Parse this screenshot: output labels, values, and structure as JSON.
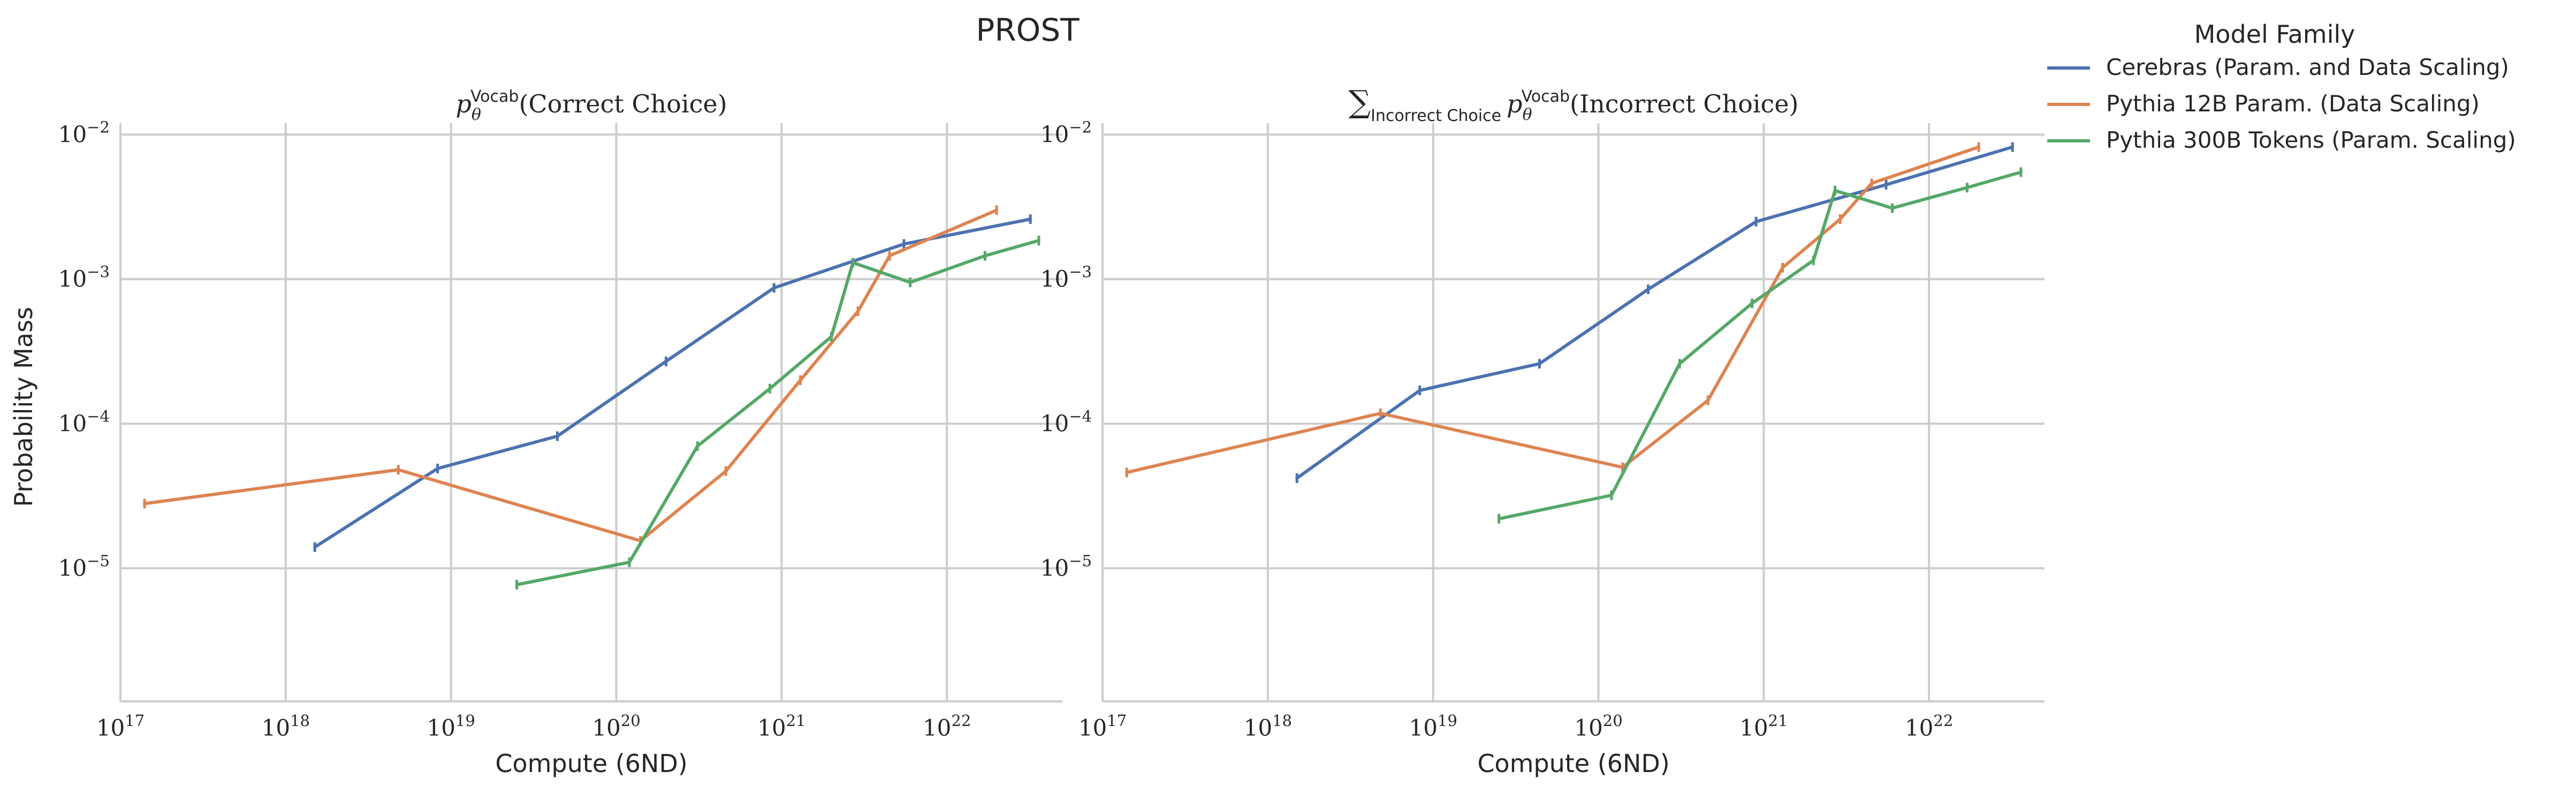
{
  "suptitle": "PROST",
  "legend": {
    "title": "Model Family",
    "loc": "upper right, outside axes"
  },
  "colors": {
    "Cerebras (Param. and Data Scaling)": "#4c72b0",
    "Pythia 12B Param. (Data Scaling)": "#dd8452",
    "Pythia 300B Tokens (Param. Scaling)": "#55a868"
  },
  "chart_data": [
    {
      "type": "line",
      "title": "p_θ^Vocab(Correct Choice)",
      "title_parts": {
        "p": "p",
        "sub": "θ",
        "sup": "Vocab",
        "arg": "(Correct Choice)"
      },
      "xlabel": "Compute (6ND)",
      "ylabel": "Probability Mass",
      "xscale": "log",
      "yscale": "log",
      "xlim": [
        1e+17,
        5e+22
      ],
      "ylim": [
        1.2e-06,
        0.012
      ],
      "grid": true,
      "xticks": [
        1e+17,
        1e+18,
        1e+19,
        1e+20,
        1e+21,
        1e+22
      ],
      "yticks": [
        1e-05,
        0.0001,
        0.001,
        0.01
      ],
      "series": [
        {
          "name": "Cerebras (Param. and Data Scaling)",
          "x": [
            1.5e+18,
            8.3e+18,
            4.4e+19,
            2e+20,
            9e+20,
            5.5e+21,
            3.2e+22
          ],
          "y": [
            1.4e-05,
            4.9e-05,
            8.2e-05,
            0.00027,
            0.00087,
            0.00175,
            0.0026
          ]
        },
        {
          "name": "Pythia 12B Param. (Data Scaling)",
          "x": [
            1.4e+17,
            4.8e+18,
            1.4e+20,
            4.6e+20,
            1.3e+21,
            2.9e+21,
            4.5e+21,
            2e+22
          ],
          "y": [
            2.8e-05,
            4.8e-05,
            1.55e-05,
            4.7e-05,
            0.0002,
            0.0006,
            0.00145,
            0.003
          ]
        },
        {
          "name": "Pythia 300B Tokens (Param. Scaling)",
          "x": [
            2.5e+19,
            1.2e+20,
            3.1e+20,
            8.5e+20,
            2e+21,
            2.7e+21,
            6e+21,
            1.7e+22,
            3.6e+22
          ],
          "y": [
            7.7e-06,
            1.1e-05,
            7e-05,
            0.000175,
            0.0004,
            0.0013,
            0.00095,
            0.00145,
            0.00185
          ]
        }
      ]
    },
    {
      "type": "line",
      "title": "∑_Incorrect Choice p_θ^Vocab(Incorrect Choice)",
      "title_parts": {
        "sum": "∑",
        "sum_sub": "Incorrect Choice",
        "p": "p",
        "sub": "θ",
        "sup": "Vocab",
        "arg": "(Incorrect Choice)"
      },
      "xlabel": "Compute (6ND)",
      "ylabel": "",
      "xscale": "log",
      "yscale": "log",
      "xlim": [
        1e+17,
        5e+22
      ],
      "ylim": [
        1.2e-06,
        0.012
      ],
      "grid": true,
      "xticks": [
        1e+17,
        1e+18,
        1e+19,
        1e+20,
        1e+21,
        1e+22
      ],
      "yticks": [
        1e-05,
        0.0001,
        0.001,
        0.01
      ],
      "series": [
        {
          "name": "Cerebras (Param. and Data Scaling)",
          "x": [
            1.5e+18,
            8.3e+18,
            4.4e+19,
            2e+20,
            9e+20,
            5.5e+21,
            3.2e+22
          ],
          "y": [
            4.2e-05,
            0.00017,
            0.00026,
            0.00085,
            0.0025,
            0.0045,
            0.0082
          ]
        },
        {
          "name": "Pythia 12B Param. (Data Scaling)",
          "x": [
            1.4e+17,
            4.8e+18,
            1.4e+20,
            4.6e+20,
            1.3e+21,
            2.9e+21,
            4.5e+21,
            2e+22
          ],
          "y": [
            4.6e-05,
            0.000118,
            5e-05,
            0.000145,
            0.0012,
            0.0026,
            0.0046,
            0.0082
          ]
        },
        {
          "name": "Pythia 300B Tokens (Param. Scaling)",
          "x": [
            2.5e+19,
            1.2e+20,
            3.1e+20,
            8.5e+20,
            2e+21,
            2.7e+21,
            6e+21,
            1.7e+22,
            3.6e+22
          ],
          "y": [
            2.2e-05,
            3.2e-05,
            0.00026,
            0.00068,
            0.00135,
            0.0041,
            0.0031,
            0.0043,
            0.0055
          ]
        }
      ]
    }
  ]
}
